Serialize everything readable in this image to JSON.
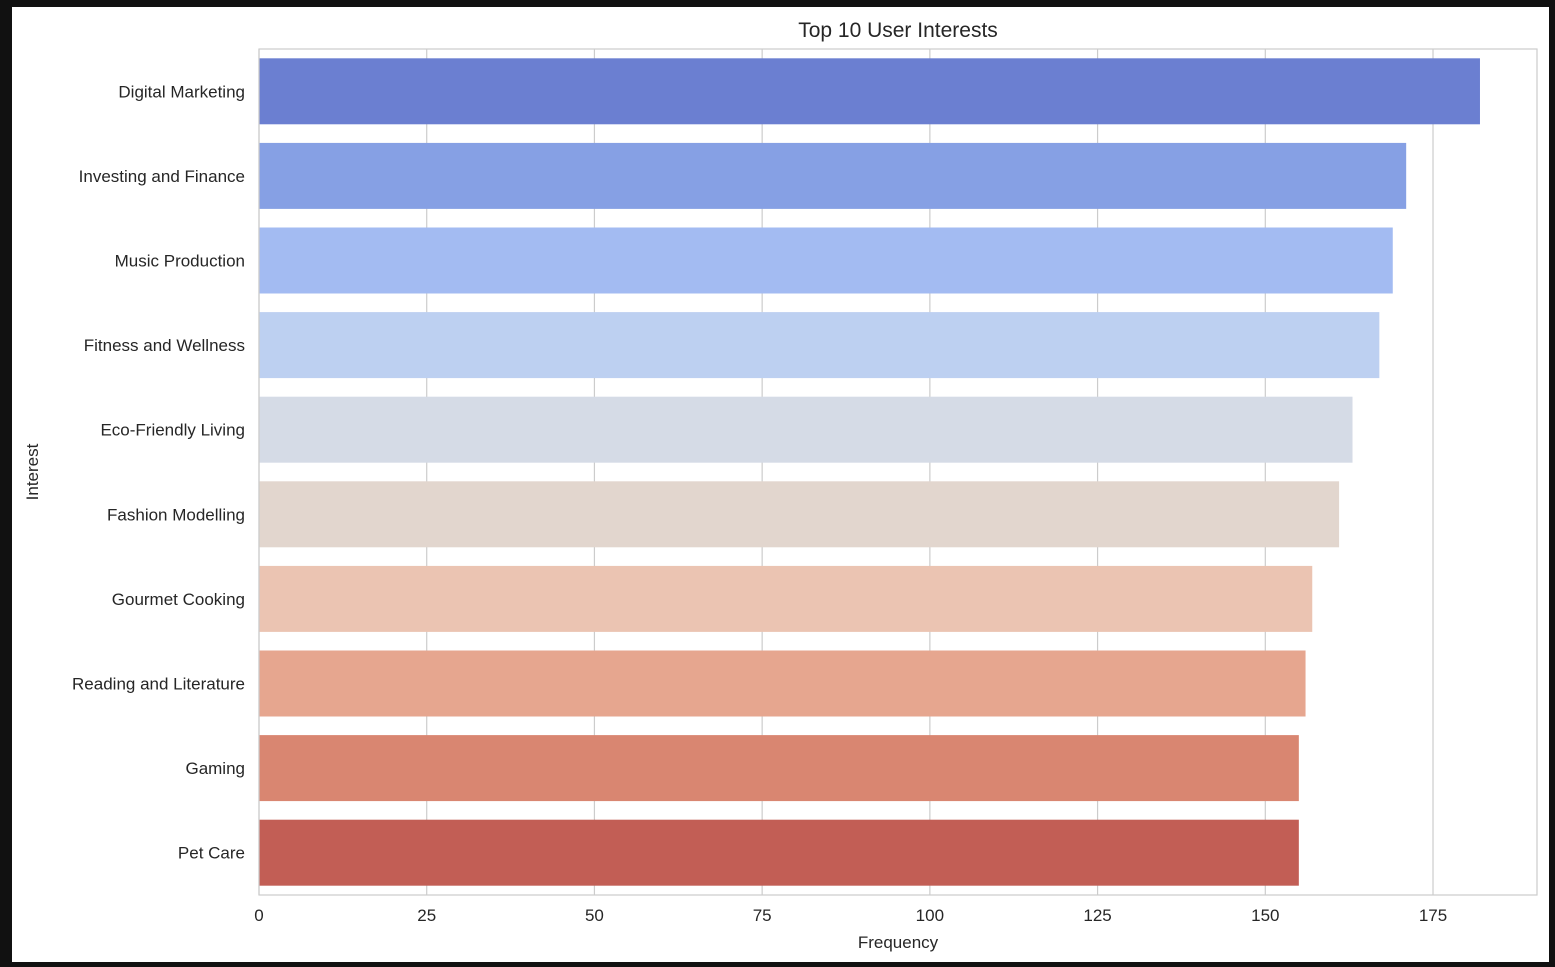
{
  "chart_data": {
    "type": "bar",
    "orientation": "horizontal",
    "title": "Top 10 User Interests",
    "xlabel": "Frequency",
    "ylabel": "Interest",
    "xlim": [
      0,
      190.5
    ],
    "xticks": [
      0,
      25,
      50,
      75,
      100,
      125,
      150,
      175
    ],
    "grid": true,
    "categories": [
      "Digital Marketing",
      "Investing and Finance",
      "Music Production",
      "Fitness and Wellness",
      "Eco-Friendly Living",
      "Fashion Modelling",
      "Gourmet Cooking",
      "Reading and Literature",
      "Gaming",
      "Pet Care"
    ],
    "values": [
      182,
      171,
      169,
      167,
      163,
      161,
      157,
      156,
      155,
      155
    ],
    "colors": [
      "#6b7fd1",
      "#86a0e4",
      "#a3bbf2",
      "#bdd0f1",
      "#d5dbe6",
      "#e2d6ce",
      "#ebc4b2",
      "#e6a68f",
      "#d98671",
      "#c25e55"
    ]
  }
}
